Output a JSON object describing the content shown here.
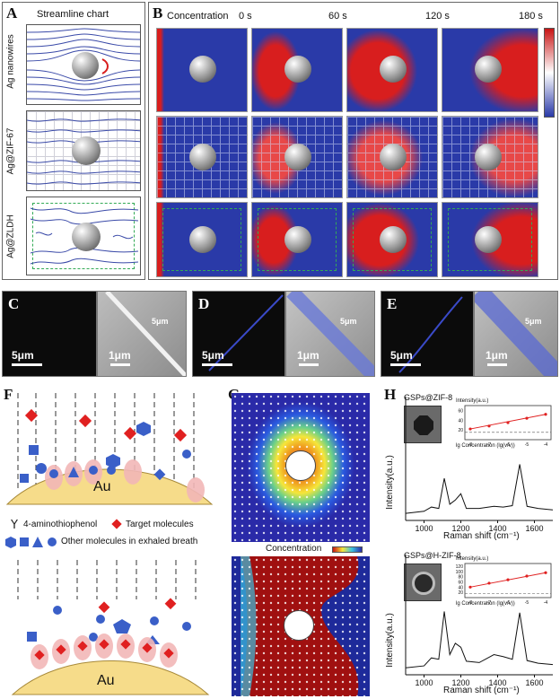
{
  "panels": {
    "a": {
      "letter": "A",
      "title": "Streamline chart",
      "rows": [
        "Ag nanowires",
        "Ag@ZIF-67",
        "Ag@ZLDH"
      ]
    },
    "b": {
      "letter": "B",
      "concentration_label": "Concentration",
      "times": [
        "0 s",
        "60 s",
        "120 s",
        "180 s"
      ]
    },
    "c": {
      "letter": "C",
      "scale_left": "5μm",
      "scale_right": "1μm",
      "scale_inset": "5μm"
    },
    "d": {
      "letter": "D",
      "scale_left": "5μm",
      "scale_right": "1μm",
      "scale_inset": "5μm"
    },
    "e": {
      "letter": "E",
      "scale_left": "5μm",
      "scale_right": "1μm",
      "scale_inset": "5μm"
    },
    "f": {
      "letter": "F",
      "au_label": "Au",
      "legend": {
        "aminothiophenol": "4-aminothiophenol",
        "target": "Target molecules",
        "other": "Other molecules in exhaled breath"
      }
    },
    "g": {
      "letter": "G",
      "concentration_label": "Concentration"
    },
    "h": {
      "letter": "H",
      "top_sample": "GSPs@ZIF-8",
      "bottom_sample": "GSPs@H-ZIF-8",
      "ylabel": "Intensity(a.u.)",
      "xlabel": "Raman shift (cm⁻¹)",
      "xticks": [
        "1000",
        "1200",
        "1400",
        "1600"
      ],
      "inset_ylabel": "Intensity(a.u.)",
      "inset_xlabel": "lg Concentration (lg(v/v))",
      "inset_xticks": [
        "-8",
        "-7",
        "-6",
        "-5",
        "-4"
      ],
      "inset_top_yticks": [
        "60",
        "40",
        "20"
      ],
      "inset_bottom_yticks": [
        "120",
        "100",
        "80",
        "60",
        "40",
        "20"
      ]
    }
  },
  "chart_data": [
    {
      "type": "line",
      "title": "GSPs@ZIF-8",
      "xlabel": "Raman shift (cm⁻¹)",
      "ylabel": "Intensity(a.u.)",
      "xlim": [
        900,
        1700
      ],
      "series": [
        {
          "x": [
            900,
            1000,
            1040,
            1080,
            1110,
            1140,
            1170,
            1200,
            1230,
            1300,
            1380,
            1430,
            1480,
            1520,
            1560,
            1620,
            1700
          ],
          "values": [
            0.05,
            0.08,
            0.14,
            0.12,
            0.55,
            0.18,
            0.24,
            0.33,
            0.12,
            0.12,
            0.15,
            0.14,
            0.16,
            0.75,
            0.15,
            0.12,
            0.1
          ]
        }
      ],
      "inset": {
        "type": "scatter",
        "x": [
          -8,
          -7,
          -6,
          -5,
          -4
        ],
        "values": [
          22,
          28,
          35,
          44,
          52
        ],
        "ylim": [
          0,
          70
        ]
      }
    },
    {
      "type": "line",
      "title": "GSPs@H-ZIF-8",
      "xlabel": "Raman shift (cm⁻¹)",
      "ylabel": "Intensity(a.u.)",
      "xlim": [
        900,
        1700
      ],
      "series": [
        {
          "x": [
            900,
            1000,
            1040,
            1080,
            1110,
            1140,
            1170,
            1200,
            1230,
            1300,
            1380,
            1430,
            1480,
            1520,
            1560,
            1620,
            1700
          ],
          "values": [
            0.05,
            0.08,
            0.2,
            0.18,
            0.9,
            0.25,
            0.42,
            0.36,
            0.15,
            0.13,
            0.25,
            0.22,
            0.18,
            0.88,
            0.16,
            0.12,
            0.1
          ]
        }
      ],
      "inset": {
        "type": "scatter",
        "x": [
          -8,
          -7,
          -6,
          -5,
          -4
        ],
        "values": [
          40,
          55,
          68,
          82,
          95
        ],
        "ylim": [
          0,
          130
        ]
      }
    }
  ],
  "colors": {
    "flow_red": "#d81e1e",
    "flow_blue": "#2a3aa8",
    "target_red": "#e02020",
    "other_blue": "#3a5fc8",
    "au_fill": "#f6dc8a"
  }
}
